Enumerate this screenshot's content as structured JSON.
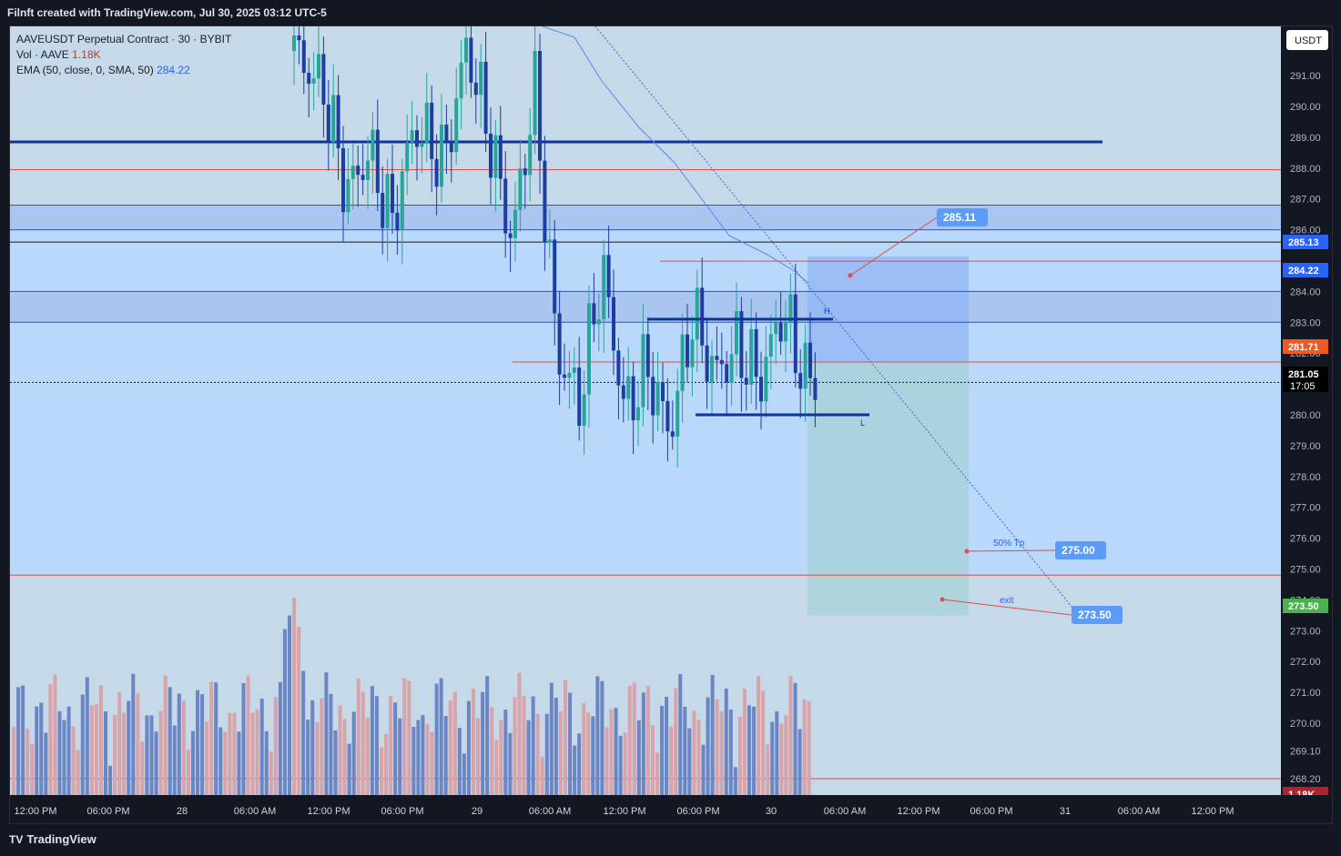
{
  "header": {
    "attribution": "Filnft created with TradingView.com, Jul 30, 2025 03:12 UTC-5"
  },
  "legend": {
    "symbol_line": "AAVEUSDT Perpetual Contract · 30 · BYBIT",
    "vol_label": "Vol · AAVE",
    "vol_value": "1.18K",
    "ema_label": "EMA (50, close, 0, SMA, 50)",
    "ema_value": "284.22"
  },
  "currency_button": "USDT",
  "footer": {
    "brand": "TradingView"
  },
  "colors": {
    "plot_bg": "#c5d9e8",
    "zone_bg": "#b9d8fa",
    "bull": "#26a69a",
    "bear": "#1c3ea0",
    "vol_bull": "#6b86c4",
    "vol_bear": "#d9a3aa",
    "level_line": "#0d3599",
    "red_line": "#e04b4b",
    "label_blue": "#5b9cf6",
    "last_price": "#131722",
    "ema": "#5b88e8"
  },
  "chart_data": {
    "type": "candlestick",
    "symbol": "AAVEUSDT Perpetual Contract",
    "timeframe": "30",
    "exchange": "BYBIT",
    "price_axis": {
      "ticks": [
        "291.00",
        "290.00",
        "289.00",
        "288.00",
        "287.00",
        "286.00",
        "284.00",
        "283.00",
        "282.00",
        "280.00",
        "279.00",
        "278.00",
        "277.00",
        "276.00",
        "275.00",
        "274.00",
        "273.00",
        "272.00",
        "271.00",
        "270.00",
        "269.10",
        "268.20"
      ],
      "range": [
        267.5,
        291.8
      ]
    },
    "time_axis": {
      "ticks": [
        "12:00 PM",
        "06:00 PM",
        "28",
        "06:00 AM",
        "12:00 PM",
        "06:00 PM",
        "29",
        "06:00 AM",
        "12:00 PM",
        "06:00 PM",
        "30",
        "06:00 AM",
        "12:00 PM",
        "06:00 PM",
        "31",
        "06:00 AM",
        "12:00 PM"
      ]
    },
    "price_labels": [
      {
        "text": "285.13",
        "price": 285.13,
        "color": "#2962ff"
      },
      {
        "text": "284.22",
        "price": 284.22,
        "color": "#2962ff"
      },
      {
        "text": "281.71",
        "price": 281.71,
        "color": "#f05a1e"
      },
      {
        "text": "281.05",
        "price": 281.05,
        "color": "#000000",
        "sub": "17:05"
      },
      {
        "text": "273.50",
        "price": 273.5,
        "color": "#4caf50"
      },
      {
        "text": "1.18K",
        "price": null,
        "color": "#b2222b"
      }
    ],
    "horizontal_levels": [
      {
        "price": 288.85,
        "style": "thick",
        "color": "#0d3599"
      },
      {
        "price": 287.95,
        "style": "thin",
        "color": "#e04b4b"
      },
      {
        "price": 286.8,
        "style": "thin",
        "color": "#3556a8"
      },
      {
        "price": 286.0,
        "style": "thin",
        "color": "#3556a8"
      },
      {
        "price": 285.6,
        "style": "thin",
        "color": "#131722"
      },
      {
        "price": 284.0,
        "style": "thin",
        "color": "#3556a8"
      },
      {
        "price": 283.0,
        "style": "thin",
        "color": "#3556a8"
      },
      {
        "price": 281.71,
        "style": "thin",
        "color": "#e04b4b"
      },
      {
        "price": 281.05,
        "style": "dotted",
        "color": "#131722"
      },
      {
        "price": 274.8,
        "style": "thin",
        "color": "#e04b4b"
      },
      {
        "price": 268.2,
        "style": "thin",
        "color": "#e04b4b"
      }
    ],
    "range_lines": [
      {
        "label": "H",
        "price": 283.1
      },
      {
        "label": "L",
        "price": 280.0
      }
    ],
    "position": {
      "entry": 281.71,
      "target": 285.13,
      "stop_zone_bottom": 273.5
    },
    "annotations": [
      {
        "text": "285.11",
        "price": 285.11
      },
      {
        "text": "275.00",
        "price": 275.0,
        "note": "50% Tp"
      },
      {
        "text": "273.50",
        "price": 273.5,
        "note": "exit"
      }
    ],
    "ema_current": 284.22,
    "volume_last": "1.18K"
  }
}
